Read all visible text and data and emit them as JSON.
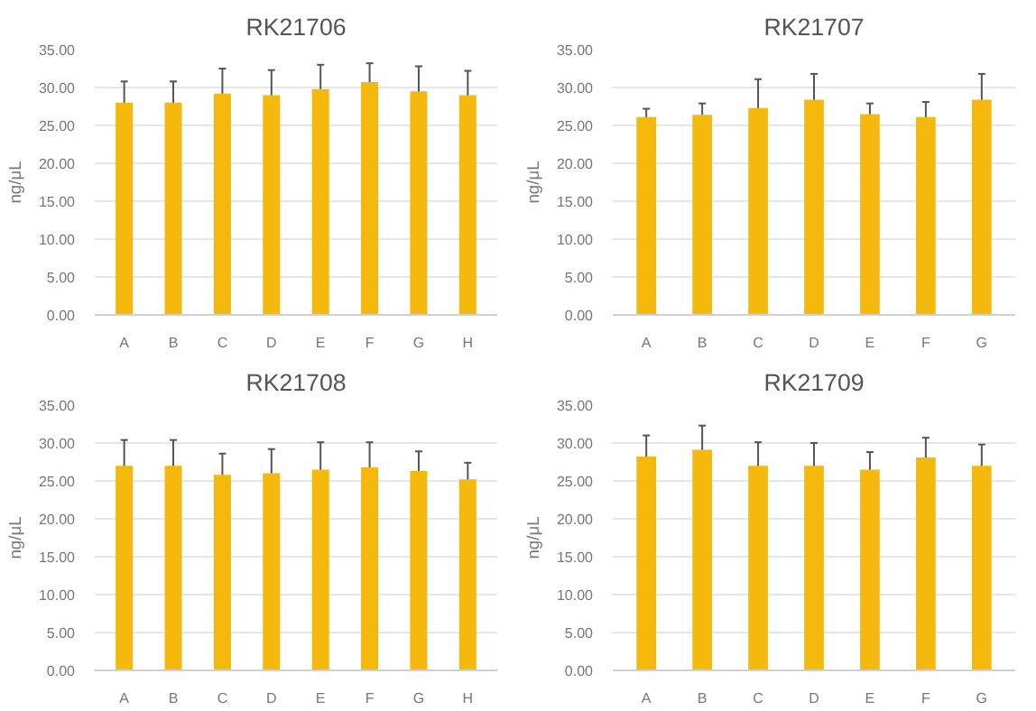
{
  "chart_data": [
    {
      "type": "bar",
      "title": "RK21706",
      "ylabel": "ng/μL",
      "categories": [
        "A",
        "B",
        "C",
        "D",
        "E",
        "F",
        "G",
        "H"
      ],
      "values": [
        28.0,
        28.0,
        29.2,
        29.0,
        29.8,
        30.7,
        29.5,
        29.0
      ],
      "errors": [
        2.8,
        2.8,
        3.3,
        3.3,
        3.2,
        2.5,
        3.3,
        3.2
      ],
      "color": "#f5b80c",
      "ylim": [
        0,
        35
      ],
      "yticks": [
        {
          "value": 0,
          "label": "0.00"
        },
        {
          "value": 5,
          "label": "5.00"
        },
        {
          "value": 10,
          "label": "10.00"
        },
        {
          "value": 15,
          "label": "15.00"
        },
        {
          "value": 20,
          "label": "20.00"
        },
        {
          "value": 25,
          "label": "25.00"
        },
        {
          "value": 30,
          "label": "30.00"
        },
        {
          "value": 35,
          "label": "35.00"
        }
      ],
      "grid": "y"
    },
    {
      "type": "bar",
      "title": "RK21707",
      "ylabel": "ng/μL",
      "categories": [
        "A",
        "B",
        "C",
        "D",
        "E",
        "F",
        "G"
      ],
      "values": [
        26.1,
        26.4,
        27.3,
        28.4,
        26.5,
        26.1,
        28.4
      ],
      "errors": [
        1.1,
        1.5,
        3.8,
        3.4,
        1.4,
        2.0,
        3.4
      ],
      "color": "#f5b80c",
      "ylim": [
        0,
        35
      ],
      "yticks": [
        {
          "value": 0,
          "label": "0.00"
        },
        {
          "value": 5,
          "label": "5.00"
        },
        {
          "value": 10,
          "label": "10.00"
        },
        {
          "value": 15,
          "label": "15.00"
        },
        {
          "value": 20,
          "label": "20.00"
        },
        {
          "value": 25,
          "label": "25.00"
        },
        {
          "value": 30,
          "label": "30.00"
        },
        {
          "value": 35,
          "label": "35.00"
        }
      ],
      "grid": "y"
    },
    {
      "type": "bar",
      "title": "RK21708",
      "ylabel": "ng/μL",
      "categories": [
        "A",
        "B",
        "C",
        "D",
        "E",
        "F",
        "G",
        "H"
      ],
      "values": [
        27.0,
        27.0,
        25.8,
        26.0,
        26.5,
        26.8,
        26.3,
        25.2
      ],
      "errors": [
        3.4,
        3.4,
        2.8,
        3.2,
        3.6,
        3.3,
        2.6,
        2.2
      ],
      "color": "#f5b80c",
      "ylim": [
        0,
        35
      ],
      "yticks": [
        {
          "value": 0,
          "label": "0.00"
        },
        {
          "value": 5,
          "label": "5.00"
        },
        {
          "value": 10,
          "label": "10.00"
        },
        {
          "value": 15,
          "label": "15.00"
        },
        {
          "value": 20,
          "label": "20.00"
        },
        {
          "value": 25,
          "label": "25.00"
        },
        {
          "value": 30,
          "label": "30.00"
        },
        {
          "value": 35,
          "label": "35.00"
        }
      ],
      "grid": "y"
    },
    {
      "type": "bar",
      "title": "RK21709",
      "ylabel": "ng/μL",
      "categories": [
        "A",
        "B",
        "C",
        "D",
        "E",
        "F",
        "G"
      ],
      "values": [
        28.2,
        29.1,
        27.0,
        27.0,
        26.5,
        28.1,
        27.0
      ],
      "errors": [
        2.8,
        3.2,
        3.1,
        3.0,
        2.3,
        2.6,
        2.8
      ],
      "color": "#f5b80c",
      "ylim": [
        0,
        35
      ],
      "yticks": [
        {
          "value": 0,
          "label": "0.00"
        },
        {
          "value": 5,
          "label": "5.00"
        },
        {
          "value": 10,
          "label": "10.00"
        },
        {
          "value": 15,
          "label": "15.00"
        },
        {
          "value": 20,
          "label": "20.00"
        },
        {
          "value": 25,
          "label": "25.00"
        },
        {
          "value": 30,
          "label": "30.00"
        },
        {
          "value": 35,
          "label": "35.00"
        }
      ],
      "grid": "y"
    }
  ]
}
